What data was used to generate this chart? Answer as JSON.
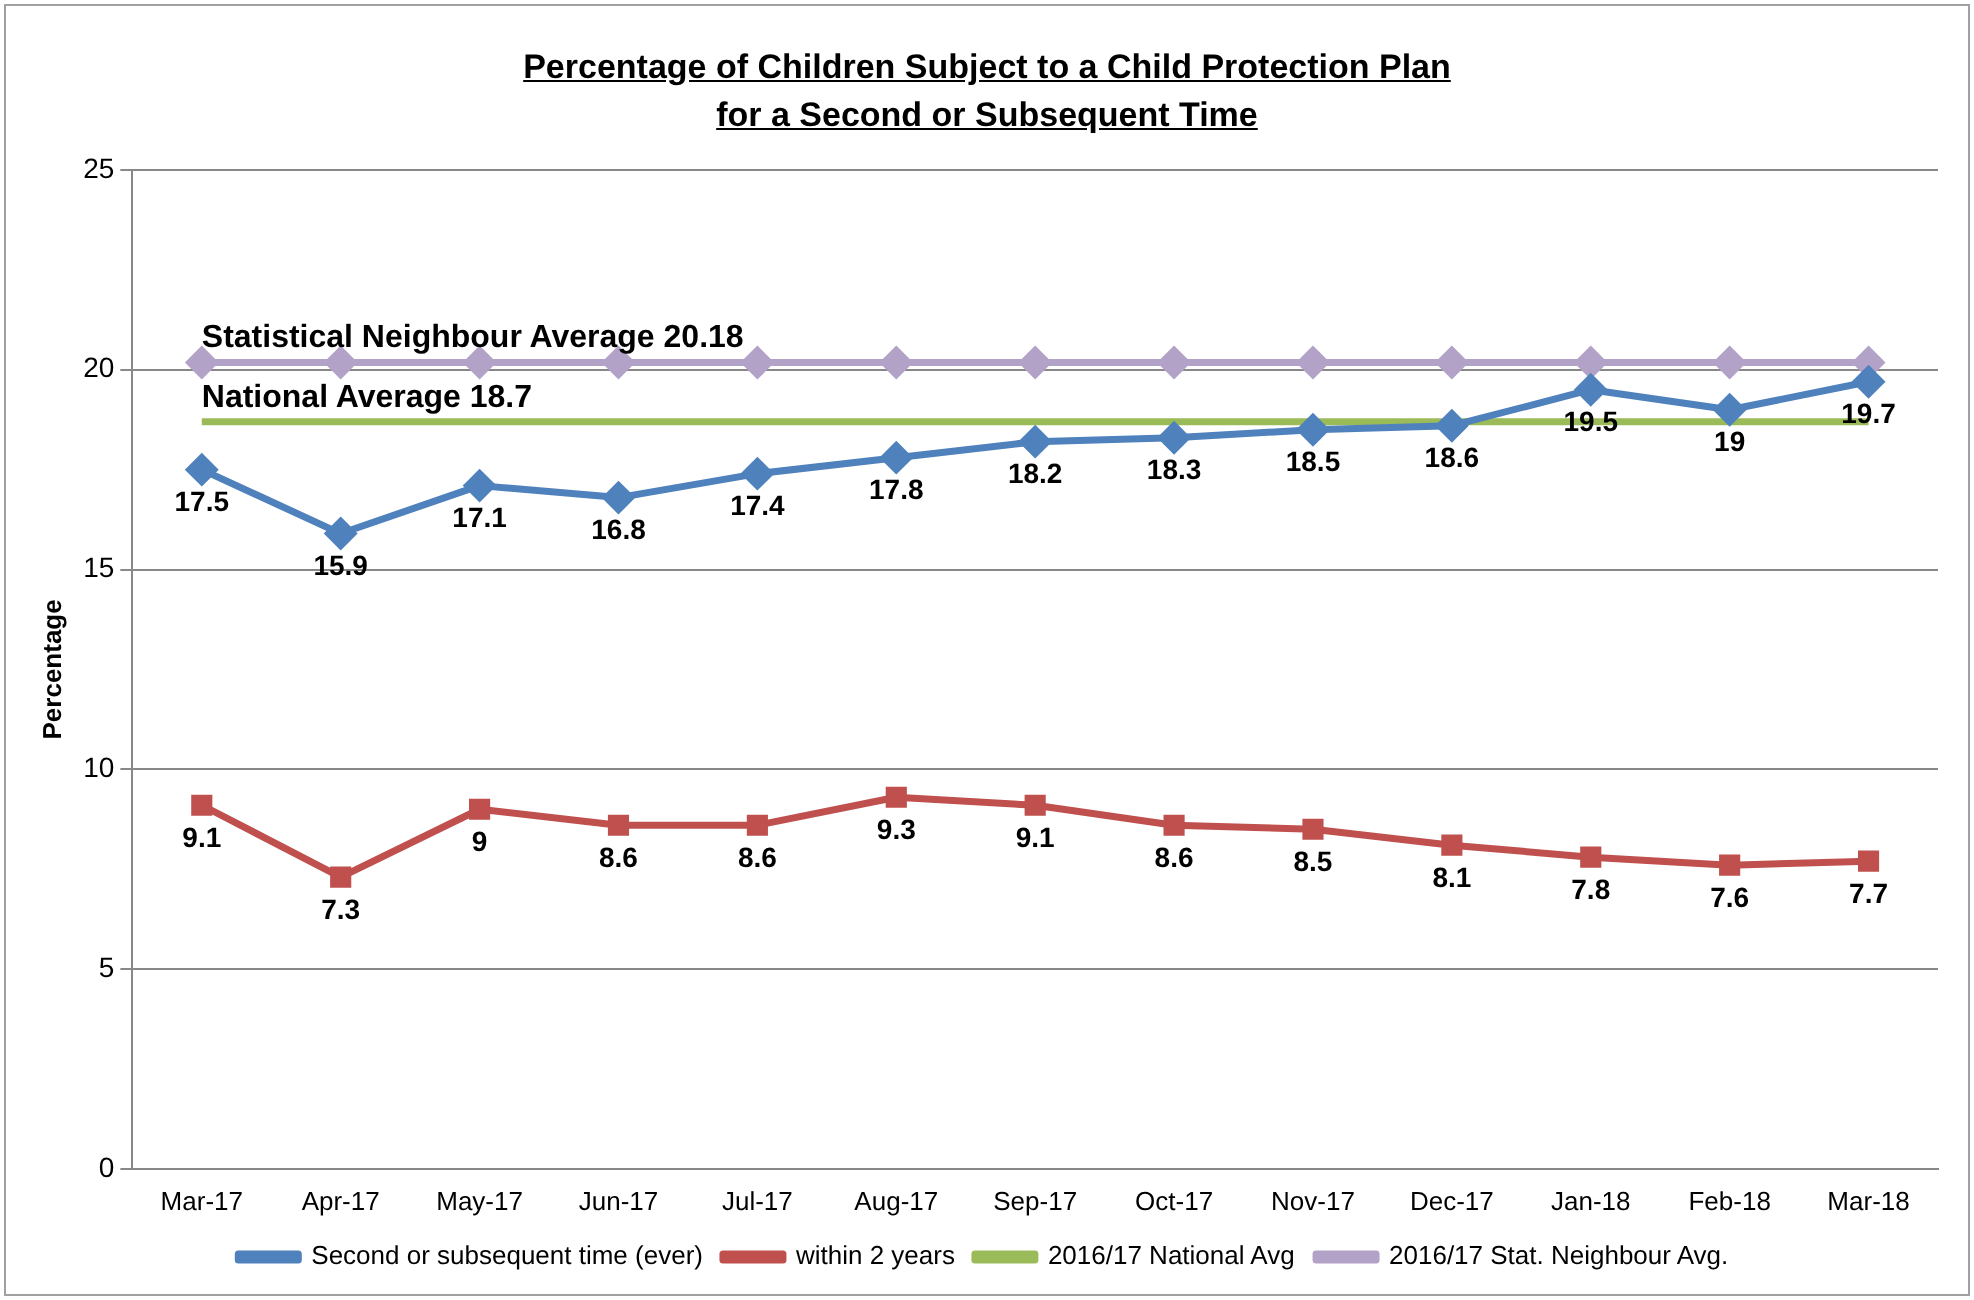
{
  "chart_data": {
    "type": "line",
    "title": "Percentage of Children Subject to a Child Protection Plan\nfor a Second or Subsequent Time",
    "ylabel": "Percentage",
    "categories": [
      "Mar-17",
      "Apr-17",
      "May-17",
      "Jun-17",
      "Jul-17",
      "Aug-17",
      "Sep-17",
      "Oct-17",
      "Nov-17",
      "Dec-17",
      "Jan-18",
      "Feb-18",
      "Mar-18"
    ],
    "series": [
      {
        "name": "Second or subsequent time (ever)",
        "color": "#4f81bd",
        "marker": "diamond",
        "values": [
          17.5,
          15.9,
          17.1,
          16.8,
          17.4,
          17.8,
          18.2,
          18.3,
          18.5,
          18.6,
          19.5,
          19,
          19.7
        ],
        "value_labels": [
          "17.5",
          "15.9",
          "17.1",
          "16.8",
          "17.4",
          "17.8",
          "18.2",
          "18.3",
          "18.5",
          "18.6",
          "19.5",
          "19",
          "19.7"
        ]
      },
      {
        "name": "within 2 years",
        "color": "#c0504d",
        "marker": "square",
        "values": [
          9.1,
          7.3,
          9,
          8.6,
          8.6,
          9.3,
          9.1,
          8.6,
          8.5,
          8.1,
          7.8,
          7.6,
          7.7
        ],
        "value_labels": [
          "9.1",
          "7.3",
          "9",
          "8.6",
          "8.6",
          "9.3",
          "9.1",
          "8.6",
          "8.5",
          "8.1",
          "7.8",
          "7.6",
          "7.7"
        ]
      },
      {
        "name": "2016/17 National Avg",
        "color": "#9bbb59",
        "marker": "none",
        "values": [
          18.7,
          18.7,
          18.7,
          18.7,
          18.7,
          18.7,
          18.7,
          18.7,
          18.7,
          18.7,
          18.7,
          18.7,
          18.7
        ]
      },
      {
        "name": "2016/17 Stat. Neighbour Avg.",
        "color": "#b3a2c7",
        "marker": "diamond",
        "values": [
          20.18,
          20.18,
          20.18,
          20.18,
          20.18,
          20.18,
          20.18,
          20.18,
          20.18,
          20.18,
          20.18,
          20.18,
          20.18
        ]
      }
    ],
    "annotations": [
      {
        "text": "Statistical Neighbour Average 20.18",
        "x": "Mar-17",
        "y": 20.18
      },
      {
        "text": "National Average 18.7",
        "x": "Mar-17",
        "y": 18.7
      }
    ],
    "ylim": [
      0,
      25
    ],
    "yticks": [
      0,
      5,
      10,
      15,
      20,
      25
    ],
    "grid": "y",
    "legend": "bottom"
  }
}
